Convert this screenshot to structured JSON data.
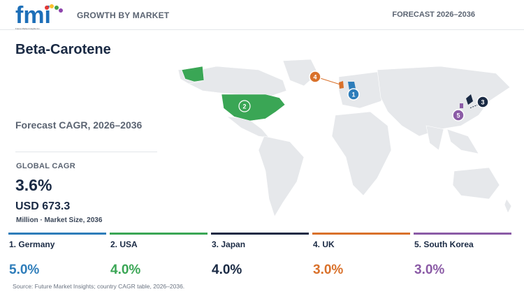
{
  "header": {
    "logo_text": "fmi",
    "logo_tagline": "Future Market Insights Inc.",
    "left_label": "GROWTH BY MARKET",
    "right_label": "FORECAST 2026–2036"
  },
  "title": "Beta-Carotene",
  "subtitle": "Forecast CAGR, 2026–2036",
  "global": {
    "label": "GLOBAL CAGR",
    "value": "3.6%",
    "market_size": "USD 673.3",
    "market_size_label": "Million · Market Size, 2036"
  },
  "colors": {
    "germany": "#2e7dba",
    "usa": "#3aa655",
    "japan": "#1a2a44",
    "uk": "#d9712b",
    "south_korea": "#8b5ba6",
    "land": "#e6e8eb"
  },
  "countries": [
    {
      "rank": "1",
      "label": "1. Germany",
      "cagr": "5.0%",
      "color": "#2e7dba"
    },
    {
      "rank": "2",
      "label": "2. USA",
      "cagr": "4.0%",
      "color": "#3aa655"
    },
    {
      "rank": "3",
      "label": "3. Japan",
      "cagr": "4.0%",
      "color": "#1a2a44"
    },
    {
      "rank": "4",
      "label": "4. UK",
      "cagr": "3.0%",
      "color": "#d9712b"
    },
    {
      "rank": "5",
      "label": "5. South Korea",
      "cagr": "3.0%",
      "color": "#8b5ba6"
    }
  ],
  "source": "Source: Future Market Insights; country CAGR table, 2026–2036."
}
